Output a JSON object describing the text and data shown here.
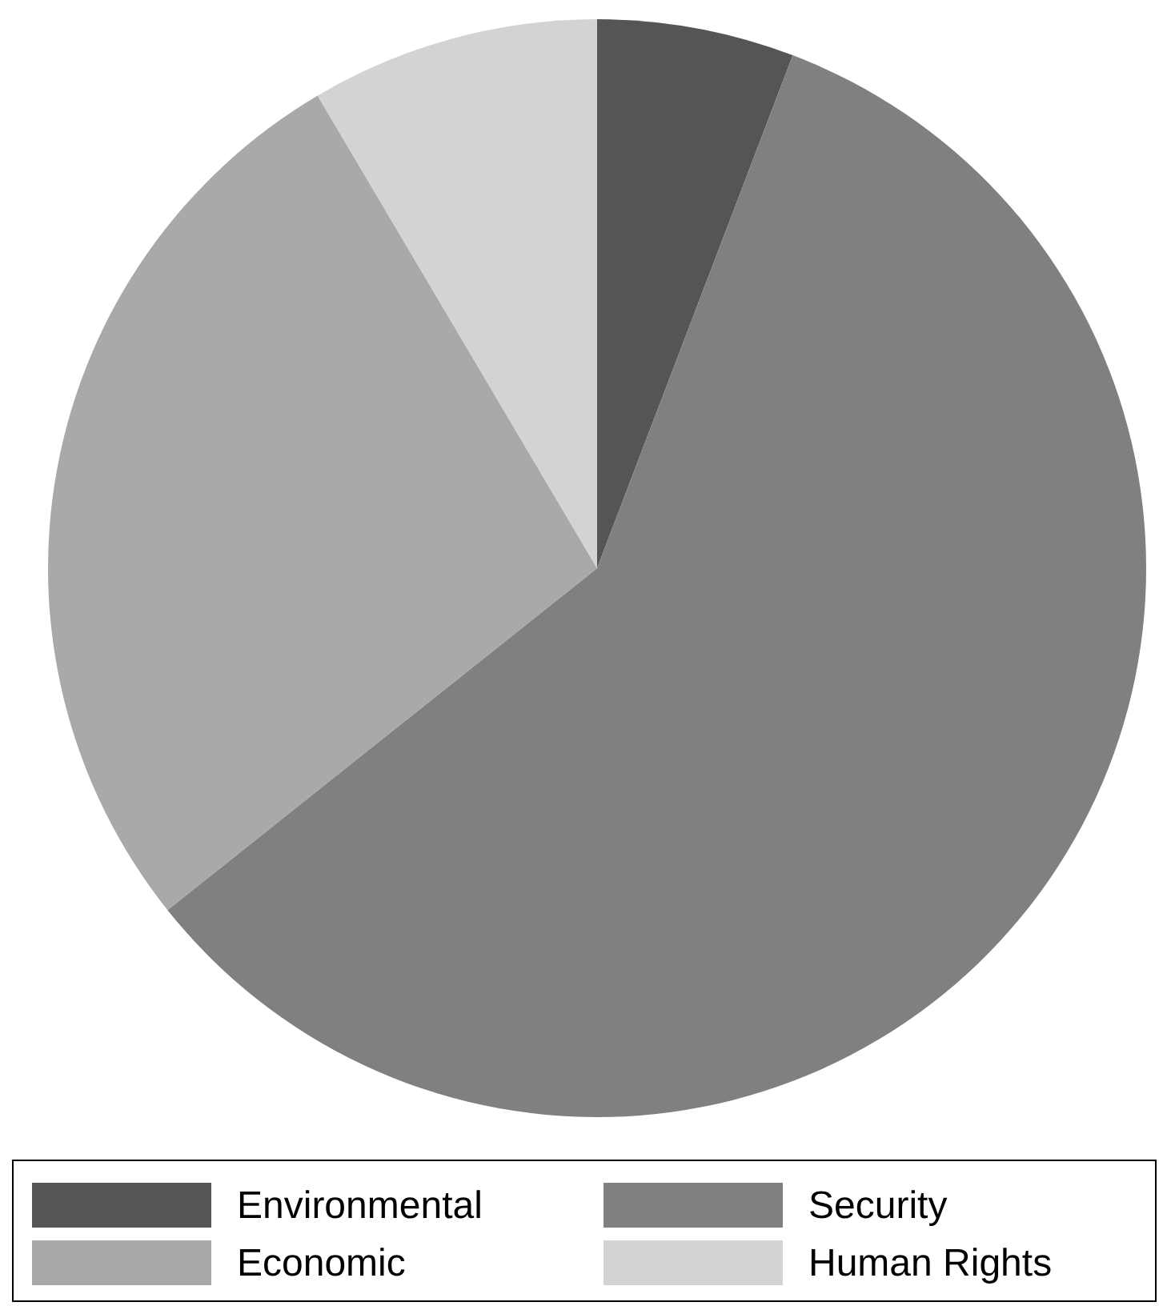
{
  "chart_data": {
    "type": "pie",
    "categories": [
      "Environmental",
      "Security",
      "Economic",
      "Human Rights"
    ],
    "values": [
      5.8,
      58.5,
      27.2,
      8.5
    ],
    "colors": [
      "#555555",
      "#808080",
      "#a9a9a9",
      "#d3d3d3"
    ],
    "legend": "bottom"
  }
}
